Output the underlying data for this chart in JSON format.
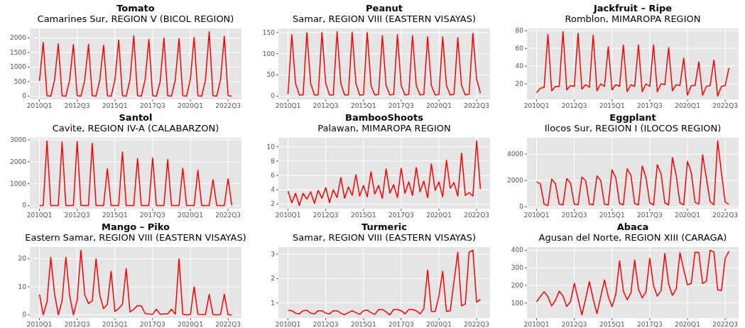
{
  "chart_data": [
    {
      "type": "line",
      "title": "Tomato",
      "subtitle": "Camarines Sur, REGION V (BICOL REGION)",
      "color": "#ff0000",
      "grid": true,
      "ylim": [
        -111,
        2331
      ],
      "yticks": [
        0,
        500,
        1000,
        1500,
        2000
      ],
      "categories": [
        "2010Q1",
        null,
        null,
        null,
        null,
        null,
        null,
        null,
        null,
        null,
        "2012Q3",
        null,
        null,
        null,
        null,
        null,
        null,
        null,
        null,
        null,
        "2015Q1",
        null,
        null,
        null,
        null,
        null,
        null,
        null,
        null,
        null,
        "2017Q3",
        null,
        null,
        null,
        null,
        null,
        null,
        null,
        null,
        null,
        "2020Q1",
        null,
        null,
        null,
        null,
        null,
        null,
        null,
        null,
        null,
        "2022Q3",
        null
      ],
      "values": [
        520,
        1850,
        20,
        0,
        550,
        1800,
        20,
        0,
        550,
        1780,
        20,
        0,
        550,
        1780,
        20,
        0,
        560,
        1750,
        20,
        0,
        550,
        1930,
        20,
        0,
        560,
        2080,
        20,
        0,
        550,
        1950,
        20,
        0,
        500,
        2000,
        20,
        0,
        560,
        1980,
        20,
        0,
        580,
        2020,
        20,
        0,
        550,
        2220,
        20,
        0,
        560,
        2060,
        20,
        0
      ]
    },
    {
      "type": "line",
      "title": "Peanut",
      "subtitle": "Samar, REGION VIII (EASTERN VISAYAS)",
      "color": "#ff0000",
      "grid": true,
      "ylim": [
        -7.6,
        159.6
      ],
      "yticks": [
        0,
        50,
        100,
        150
      ],
      "categories": [
        "2010Q1",
        null,
        null,
        null,
        null,
        null,
        null,
        null,
        null,
        null,
        "2012Q3",
        null,
        null,
        null,
        null,
        null,
        null,
        null,
        null,
        null,
        "2015Q1",
        null,
        null,
        null,
        null,
        null,
        null,
        null,
        null,
        null,
        "2017Q3",
        null,
        null,
        null,
        null,
        null,
        null,
        null,
        null,
        null,
        "2020Q1",
        null,
        null,
        null,
        null,
        null,
        null,
        null,
        null,
        null,
        "2022Q3",
        null
      ],
      "values": [
        5,
        145,
        30,
        3,
        3,
        150,
        30,
        3,
        3,
        150,
        30,
        3,
        3,
        152,
        30,
        3,
        3,
        151,
        30,
        3,
        3,
        150,
        25,
        3,
        4,
        143,
        25,
        3,
        4,
        145,
        25,
        3,
        4,
        143,
        25,
        3,
        4,
        140,
        25,
        3,
        4,
        140,
        25,
        3,
        4,
        138,
        25,
        3,
        5,
        148,
        40,
        7
      ]
    },
    {
      "type": "line",
      "title": "Jackfruit – Ripe",
      "subtitle": "Romblon, MIMAROPA REGION",
      "color": "#ff0000",
      "grid": true,
      "ylim": [
        2.35,
        82.65
      ],
      "yticks": [
        20,
        40,
        60,
        80
      ],
      "categories": [
        "2010Q1",
        null,
        null,
        null,
        null,
        null,
        null,
        null,
        null,
        null,
        "2012Q3",
        null,
        null,
        null,
        null,
        null,
        null,
        null,
        null,
        null,
        "2015Q1",
        null,
        null,
        null,
        null,
        null,
        null,
        null,
        null,
        null,
        "2017Q3",
        null,
        null,
        null,
        null,
        null,
        null,
        null,
        null,
        null,
        "2020Q1",
        null,
        null,
        null,
        null,
        null,
        null,
        null,
        null,
        null,
        "2022Q3",
        null
      ],
      "values": [
        10,
        15,
        16,
        76,
        12,
        17,
        17,
        79,
        13,
        18,
        17,
        77,
        14,
        19,
        16,
        75,
        12,
        20,
        17,
        62,
        13,
        19,
        17,
        64,
        11,
        19,
        17,
        64,
        11,
        20,
        17,
        64,
        11,
        20,
        19,
        61,
        12,
        19,
        18,
        49,
        7,
        18,
        18,
        45,
        7,
        17,
        18,
        47,
        6,
        17,
        18,
        38
      ]
    },
    {
      "type": "line",
      "title": "Santol",
      "subtitle": "Cavite, REGION IV-A (CALABARZON)",
      "color": "#ff0000",
      "grid": true,
      "ylim": [
        -147.5,
        3097.5
      ],
      "yticks": [
        0,
        1000,
        2000,
        3000
      ],
      "categories": [
        "2010Q1",
        null,
        null,
        null,
        null,
        null,
        null,
        null,
        null,
        null,
        "2012Q3",
        null,
        null,
        null,
        null,
        null,
        null,
        null,
        null,
        null,
        "2015Q1",
        null,
        null,
        null,
        null,
        null,
        null,
        null,
        null,
        null,
        "2017Q3",
        null,
        null,
        null,
        null,
        null,
        null,
        null,
        null,
        null,
        "2020Q1",
        null,
        null,
        null,
        null,
        null,
        null,
        null,
        null,
        null,
        "2022Q3",
        null
      ],
      "values": [
        0,
        0,
        2950,
        0,
        0,
        0,
        2900,
        0,
        0,
        0,
        2930,
        0,
        0,
        0,
        2850,
        0,
        0,
        0,
        1680,
        0,
        0,
        0,
        2450,
        0,
        0,
        0,
        2150,
        0,
        0,
        0,
        2180,
        0,
        0,
        0,
        2100,
        0,
        0,
        0,
        1700,
        0,
        0,
        0,
        1620,
        0,
        0,
        0,
        1180,
        0,
        0,
        0,
        1220,
        0
      ]
    },
    {
      "type": "line",
      "title": "BambooShoots",
      "subtitle": "Palawan, MIMAROPA REGION",
      "color": "#ff0000",
      "grid": true,
      "ylim": [
        1.35,
        11.25
      ],
      "yticks": [
        2,
        4,
        6,
        8,
        10
      ],
      "categories": [
        "2010Q1",
        null,
        null,
        null,
        null,
        null,
        null,
        null,
        null,
        null,
        "2012Q3",
        null,
        null,
        null,
        null,
        null,
        null,
        null,
        null,
        null,
        "2015Q1",
        null,
        null,
        null,
        null,
        null,
        null,
        null,
        null,
        null,
        "2017Q3",
        null,
        null,
        null,
        null,
        null,
        null,
        null,
        null,
        null,
        "2020Q1",
        null,
        null,
        null,
        null,
        null,
        null,
        null,
        null,
        null,
        "2022Q3",
        null
      ],
      "values": [
        3.8,
        2.2,
        3.5,
        1.8,
        3.5,
        2.7,
        3.7,
        2.1,
        3.9,
        2.8,
        4.3,
        2.2,
        4.0,
        2.9,
        5.7,
        2.8,
        4.4,
        3.2,
        6.1,
        3.1,
        4.6,
        3.0,
        6.5,
        3.4,
        4.6,
        2.8,
        6.9,
        3.5,
        4.7,
        2.9,
        7.0,
        3.5,
        5.1,
        3.2,
        7.1,
        3.7,
        5.2,
        2.9,
        7.6,
        3.9,
        5.1,
        3.0,
        8.1,
        4.2,
        5.0,
        3.1,
        9.1,
        3.2,
        3.6,
        3.1,
        10.8,
        4.1
      ]
    },
    {
      "type": "line",
      "title": "Eggplant",
      "subtitle": "Ilocos Sur, REGION I (ILOCOS REGION)",
      "color": "#ff0000",
      "grid": true,
      "ylim": [
        -145,
        5245
      ],
      "yticks": [
        0,
        2000,
        4000
      ],
      "categories": [
        "2010Q1",
        null,
        null,
        null,
        null,
        null,
        null,
        null,
        null,
        null,
        "2012Q3",
        null,
        null,
        null,
        null,
        null,
        null,
        null,
        null,
        null,
        "2015Q1",
        null,
        null,
        null,
        null,
        null,
        null,
        null,
        null,
        null,
        "2017Q3",
        null,
        null,
        null,
        null,
        null,
        null,
        null,
        null,
        null,
        "2020Q1",
        null,
        null,
        null,
        null,
        null,
        null,
        null,
        null,
        null,
        "2022Q3",
        null
      ],
      "values": [
        1900,
        1750,
        200,
        100,
        2100,
        1750,
        200,
        150,
        2150,
        1800,
        200,
        150,
        2250,
        2000,
        200,
        150,
        2350,
        2000,
        200,
        150,
        2800,
        2200,
        250,
        150,
        2900,
        2400,
        250,
        150,
        3100,
        2200,
        300,
        150,
        3200,
        2500,
        300,
        150,
        3750,
        2400,
        300,
        150,
        3450,
        2600,
        350,
        200,
        3950,
        2200,
        400,
        150,
        5000,
        2600,
        350,
        200
      ]
    },
    {
      "type": "line",
      "title": "Mango – Piko",
      "subtitle": "Eastern Samar, REGION VIII (EASTERN VISAYAS)",
      "color": "#ff0000",
      "grid": true,
      "ylim": [
        -1.15,
        24.15
      ],
      "yticks": [
        0,
        10,
        20
      ],
      "categories": [
        "2010Q1",
        null,
        null,
        null,
        null,
        null,
        null,
        null,
        null,
        null,
        "2012Q3",
        null,
        null,
        null,
        null,
        null,
        null,
        null,
        null,
        null,
        "2015Q1",
        null,
        null,
        null,
        null,
        null,
        null,
        null,
        null,
        null,
        "2017Q3",
        null,
        null,
        null,
        null,
        null,
        null,
        null,
        null,
        null,
        "2020Q1",
        null,
        null,
        null,
        null,
        null,
        null,
        null,
        null,
        null,
        "2022Q3",
        null
      ],
      "values": [
        7.3,
        0,
        4.6,
        20.5,
        7.6,
        0,
        5,
        20.5,
        7,
        0,
        5.2,
        23,
        7.2,
        4,
        5,
        20,
        7,
        2.2,
        3.7,
        15.5,
        1.2,
        2.2,
        3.8,
        16.5,
        1,
        2,
        3.3,
        3.2,
        0.5,
        0.3,
        0.2,
        2,
        0.2,
        0.3,
        0.3,
        2,
        0.2,
        20,
        0.2,
        0,
        0.1,
        10,
        0.2,
        0.1,
        0.1,
        7.3,
        0.1,
        0,
        0.1,
        7.3,
        0,
        0
      ]
    },
    {
      "type": "line",
      "title": "Turmeric",
      "subtitle": "Samar, REGION VIII (EASTERN VISAYAS)",
      "color": "#ff0000",
      "grid": true,
      "ylim": [
        0.38,
        3.29
      ],
      "yticks": [
        1,
        2,
        3
      ],
      "categories": [
        "2010Q1",
        null,
        null,
        null,
        null,
        null,
        null,
        null,
        null,
        null,
        "2012Q3",
        null,
        null,
        null,
        null,
        null,
        null,
        null,
        null,
        null,
        "2015Q1",
        null,
        null,
        null,
        null,
        null,
        null,
        null,
        null,
        null,
        "2017Q3",
        null,
        null,
        null,
        null,
        null,
        null,
        null,
        null,
        null,
        "2020Q1",
        null,
        null,
        null,
        null,
        null,
        null,
        null,
        null,
        null,
        "2022Q3",
        null
      ],
      "values": [
        0.7,
        0.68,
        0.58,
        0.55,
        0.68,
        0.7,
        0.58,
        0.55,
        0.68,
        0.68,
        0.58,
        0.55,
        0.68,
        0.68,
        0.58,
        0.52,
        0.6,
        0.68,
        0.6,
        0.53,
        0.68,
        0.71,
        0.6,
        0.53,
        0.73,
        0.73,
        0.63,
        0.51,
        0.73,
        0.73,
        0.68,
        0.55,
        0.73,
        0.73,
        0.68,
        0.55,
        0.76,
        2.35,
        0.65,
        0.65,
        1.28,
        2.3,
        0.65,
        0.68,
        1.88,
        3.08,
        0.88,
        0.96,
        3.08,
        3.16,
        1.03,
        1.15
      ]
    },
    {
      "type": "line",
      "title": "Abaca",
      "subtitle": "Agusan del Norte, REGION XIII (CARAGA)",
      "color": "#ff0000",
      "grid": true,
      "ylim": [
        14,
        418
      ],
      "yticks": [
        100,
        200,
        300,
        400
      ],
      "categories": [
        "2010Q1",
        null,
        null,
        null,
        null,
        null,
        null,
        null,
        null,
        null,
        "2012Q3",
        null,
        null,
        null,
        null,
        null,
        null,
        null,
        null,
        null,
        "2015Q1",
        null,
        null,
        null,
        null,
        null,
        null,
        null,
        null,
        null,
        "2017Q3",
        null,
        null,
        null,
        null,
        null,
        null,
        null,
        null,
        null,
        "2020Q1",
        null,
        null,
        null,
        null,
        null,
        null,
        null,
        null,
        null,
        "2022Q3",
        null
      ],
      "values": [
        107,
        136,
        164,
        136,
        83,
        115,
        167,
        139,
        80,
        108,
        212,
        122,
        32,
        122,
        222,
        122,
        39,
        136,
        230,
        136,
        78,
        150,
        340,
        167,
        118,
        157,
        344,
        178,
        129,
        164,
        354,
        199,
        139,
        171,
        382,
        208,
        143,
        178,
        386,
        289,
        203,
        211,
        389,
        388,
        210,
        224,
        400,
        390,
        175,
        171,
        355,
        393
      ]
    }
  ]
}
